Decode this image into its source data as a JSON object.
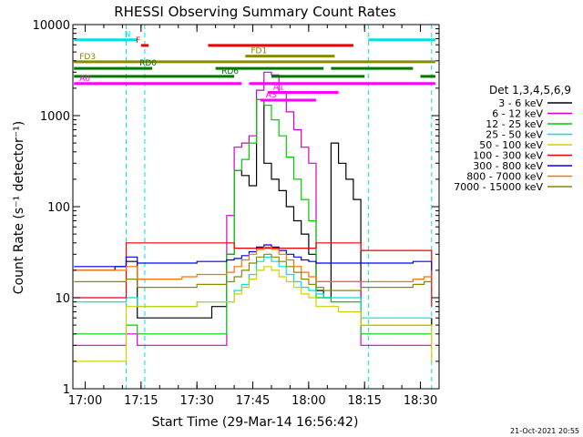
{
  "chart_data": {
    "type": "line",
    "title": "RHESSI Observing Summary Count Rates",
    "xlabel": "Start Time (29-Mar-14 16:56:42)",
    "ylabel": "Count Rate (s⁻¹ detector⁻¹)",
    "yscale": "log",
    "ylim": [
      1,
      10000
    ],
    "xlim": [
      "16:56:42",
      "18:35:00"
    ],
    "x_ticks": [
      "17:00",
      "17:15",
      "17:30",
      "17:45",
      "18:00",
      "18:15",
      "18:30"
    ],
    "y_ticks": [
      "1",
      "10",
      "100",
      "1000",
      "10000"
    ],
    "grid": false,
    "legend": {
      "title": "Det 1,3,4,5,6,9",
      "placement": "right"
    },
    "footer": "21-Oct-2021 20:55",
    "x": [
      "16:57",
      "17:05",
      "17:08",
      "17:11",
      "17:14",
      "17:18",
      "17:22",
      "17:26",
      "17:30",
      "17:34",
      "17:38",
      "17:40",
      "17:42",
      "17:44",
      "17:46",
      "17:48",
      "17:50",
      "17:52",
      "17:54",
      "17:56",
      "17:58",
      "18:00",
      "18:02",
      "18:04",
      "18:06",
      "18:08",
      "18:10",
      "18:12",
      "18:14",
      "18:16",
      "18:20",
      "18:24",
      "18:28",
      "18:31",
      "18:33"
    ],
    "series": [
      {
        "name": "3 - 6 keV",
        "color": "#000000",
        "values": [
          20,
          20,
          22,
          25,
          6,
          6,
          6,
          6,
          6,
          8,
          30,
          250,
          220,
          170,
          1500,
          300,
          200,
          150,
          100,
          70,
          50,
          30,
          12,
          10,
          500,
          300,
          200,
          120,
          5,
          5,
          5,
          5,
          5,
          5,
          6
        ]
      },
      {
        "name": "6 - 12 keV",
        "color": "#d000d0",
        "values": [
          3,
          3,
          3,
          4,
          3,
          3,
          3,
          3,
          3,
          3,
          80,
          450,
          500,
          600,
          1900,
          3000,
          2800,
          1800,
          1100,
          700,
          450,
          300,
          15,
          15,
          15,
          15,
          15,
          15,
          3,
          3,
          3,
          3,
          3,
          3,
          3
        ]
      },
      {
        "name": "12 - 25 keV",
        "color": "#00cc00",
        "values": [
          4,
          4,
          4,
          5,
          4,
          4,
          4,
          4,
          4,
          4,
          30,
          250,
          330,
          500,
          1500,
          1300,
          900,
          600,
          350,
          200,
          120,
          70,
          10,
          10,
          9,
          9,
          9,
          9,
          4,
          4,
          4,
          4,
          4,
          4,
          4
        ]
      },
      {
        "name": "25 - 50 keV",
        "color": "#00e0e0",
        "values": [
          9,
          9,
          9,
          10,
          8,
          8,
          8,
          8,
          9,
          9,
          9,
          12,
          14,
          18,
          25,
          28,
          25,
          22,
          18,
          15,
          13,
          12,
          11,
          10,
          10,
          10,
          10,
          10,
          6,
          6,
          6,
          6,
          6,
          6,
          6
        ]
      },
      {
        "name": "50 - 100 keV",
        "color": "#d0d000",
        "values": [
          2,
          2,
          2,
          8,
          8,
          8,
          8,
          8,
          9,
          9,
          9,
          11,
          13,
          16,
          20,
          22,
          20,
          17,
          15,
          13,
          11,
          10,
          8,
          8,
          8,
          7,
          7,
          7,
          5,
          5,
          5,
          5,
          5,
          5,
          2
        ]
      },
      {
        "name": "100 - 300 keV",
        "color": "#ee0000",
        "values": [
          10,
          10,
          10,
          40,
          40,
          40,
          40,
          40,
          40,
          40,
          40,
          35,
          35,
          35,
          35,
          35,
          35,
          35,
          35,
          35,
          35,
          35,
          40,
          40,
          40,
          40,
          40,
          40,
          33,
          33,
          33,
          33,
          33,
          33,
          8
        ]
      },
      {
        "name": "300 - 800 keV",
        "color": "#0000ee",
        "values": [
          22,
          22,
          22,
          28,
          24,
          24,
          24,
          24,
          25,
          25,
          26,
          27,
          29,
          32,
          36,
          38,
          36,
          33,
          30,
          28,
          26,
          25,
          24,
          24,
          24,
          24,
          24,
          24,
          24,
          24,
          24,
          24,
          25,
          25,
          20
        ]
      },
      {
        "name": "800 - 7000 keV",
        "color": "#ff7000",
        "values": [
          20,
          20,
          20,
          22,
          16,
          16,
          16,
          17,
          18,
          18,
          19,
          22,
          26,
          30,
          34,
          36,
          34,
          30,
          26,
          22,
          19,
          17,
          15,
          15,
          15,
          15,
          15,
          15,
          15,
          15,
          15,
          15,
          16,
          17,
          17
        ]
      },
      {
        "name": "7000 - 15000 keV",
        "color": "#8a8a00",
        "values": [
          15,
          15,
          15,
          16,
          13,
          13,
          13,
          13,
          14,
          14,
          15,
          17,
          20,
          24,
          28,
          30,
          28,
          25,
          22,
          19,
          16,
          14,
          13,
          12,
          12,
          12,
          12,
          12,
          13,
          13,
          13,
          13,
          14,
          15,
          15
        ]
      }
    ],
    "state_bars": [
      {
        "label": "N",
        "color": "#00e0e0",
        "y": 6800,
        "segments": [
          [
            "16:57",
            "17:14"
          ],
          [
            "18:16",
            "18:34"
          ]
        ]
      },
      {
        "label": "F",
        "color": "#ee0000",
        "y": 5900,
        "segments": [
          [
            "17:15",
            "17:17"
          ],
          [
            "17:33",
            "18:12"
          ]
        ]
      },
      {
        "label": "FD1",
        "color": "#8a8a00",
        "y": 4500,
        "segments": [
          [
            "17:43",
            "18:07"
          ]
        ]
      },
      {
        "label": "FD3",
        "color": "#8a8a00",
        "y": 3900,
        "segments": [
          [
            "16:57",
            "18:34"
          ]
        ]
      },
      {
        "label": "RD0",
        "color": "#007700",
        "y": 3300,
        "segments": [
          [
            "16:57",
            "17:18"
          ],
          [
            "17:35",
            "18:04"
          ],
          [
            "18:06",
            "18:28"
          ]
        ]
      },
      {
        "label": "RD6",
        "color": "#007700",
        "y": 2700,
        "segments": [
          [
            "16:57",
            "17:40"
          ],
          [
            "17:50",
            "18:15"
          ],
          [
            "18:30",
            "18:34"
          ]
        ]
      },
      {
        "label": "A0",
        "color": "#ff00ff",
        "y": 2250,
        "segments": [
          [
            "16:57",
            "17:42"
          ],
          [
            "17:44",
            "18:34"
          ]
        ]
      },
      {
        "label": "A1",
        "color": "#ff00ff",
        "y": 1800,
        "segments": [
          [
            "17:49",
            "18:08"
          ]
        ]
      },
      {
        "label": "A3",
        "color": "#ff00ff",
        "y": 1480,
        "segments": [
          [
            "17:47",
            "18:02"
          ]
        ]
      }
    ],
    "dashed_markers": [
      {
        "color": "#00e0e0",
        "x": "17:11"
      },
      {
        "color": "#00e0e0",
        "x": "17:16"
      },
      {
        "color": "#00e0e0",
        "x": "18:16"
      },
      {
        "color": "#00e0e0",
        "x": "18:33"
      }
    ]
  }
}
